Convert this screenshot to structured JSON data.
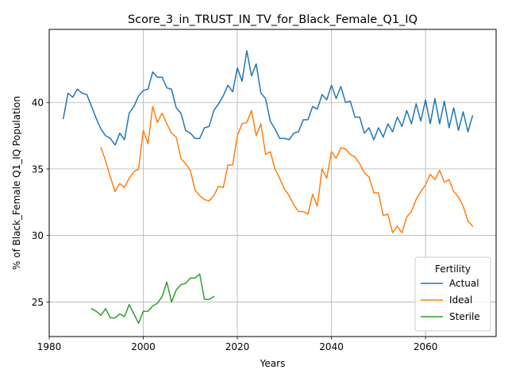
{
  "chart_data": {
    "type": "line",
    "title": "Score_3_in_TRUST_IN_TV_for_Black_Female_Q1_IQ",
    "xlabel": "Years",
    "ylabel": "% of Black_Female Q1_IQ Population",
    "xlim": [
      1980,
      2075
    ],
    "ylim": [
      22.4,
      45.5
    ],
    "xticks": [
      1980,
      2000,
      2020,
      2040,
      2060
    ],
    "yticks": [
      25,
      30,
      35,
      40
    ],
    "grid": true,
    "legend": {
      "title": "Fertility",
      "position": "lower-right"
    },
    "series": [
      {
        "name": "Actual",
        "color": "#1f77b4",
        "x": [
          1983,
          1984,
          1985,
          1986,
          1987,
          1988,
          1989,
          1990,
          1991,
          1992,
          1993,
          1994,
          1995,
          1996,
          1997,
          1998,
          1999,
          2000,
          2001,
          2002,
          2003,
          2004,
          2005,
          2006,
          2007,
          2008,
          2009,
          2010,
          2011,
          2012,
          2013,
          2014,
          2015,
          2016,
          2017,
          2018,
          2019,
          2020,
          2021,
          2022,
          2023,
          2024,
          2025,
          2026,
          2027,
          2028,
          2029,
          2030,
          2031,
          2032,
          2033,
          2034,
          2035,
          2036,
          2037,
          2038,
          2039,
          2040,
          2041,
          2042,
          2043,
          2044,
          2045,
          2046,
          2047,
          2048,
          2049,
          2050,
          2051,
          2052,
          2053,
          2054,
          2055,
          2056,
          2057,
          2058,
          2059,
          2060,
          2061,
          2062,
          2063,
          2064,
          2065,
          2066,
          2067,
          2068,
          2069,
          2070
        ],
        "values": [
          38.8,
          40.7,
          40.4,
          41.0,
          40.7,
          40.6,
          39.7,
          38.8,
          38.0,
          37.5,
          37.3,
          36.8,
          37.7,
          37.2,
          39.2,
          39.7,
          40.5,
          40.9,
          41.0,
          42.3,
          41.9,
          41.9,
          41.1,
          41.0,
          39.6,
          39.2,
          37.9,
          37.7,
          37.3,
          37.3,
          38.1,
          38.2,
          39.4,
          39.9,
          40.5,
          41.3,
          40.8,
          42.6,
          41.6,
          43.9,
          42.0,
          42.9,
          40.7,
          40.3,
          38.6,
          38.0,
          37.3,
          37.3,
          37.2,
          37.7,
          37.8,
          38.7,
          38.7,
          39.7,
          39.5,
          40.6,
          40.2,
          41.3,
          40.3,
          41.2,
          40.0,
          40.1,
          38.9,
          38.9,
          37.7,
          38.1,
          37.2,
          38.1,
          37.4,
          38.4,
          37.8,
          38.9,
          38.2,
          39.4,
          38.4,
          39.9,
          38.6,
          40.2,
          38.4,
          40.3,
          38.4,
          40.1,
          38.1,
          39.6,
          37.9,
          39.3,
          37.8,
          39.0
        ]
      },
      {
        "name": "Ideal",
        "color": "#ff7f0e",
        "x": [
          1991,
          1992,
          1993,
          1994,
          1995,
          1996,
          1997,
          1998,
          1999,
          2000,
          2001,
          2002,
          2003,
          2004,
          2005,
          2006,
          2007,
          2008,
          2009,
          2010,
          2011,
          2012,
          2013,
          2014,
          2015,
          2016,
          2017,
          2018,
          2019,
          2020,
          2021,
          2022,
          2023,
          2024,
          2025,
          2026,
          2027,
          2028,
          2029,
          2030,
          2031,
          2032,
          2033,
          2034,
          2035,
          2036,
          2037,
          2038,
          2039,
          2040,
          2041,
          2042,
          2043,
          2044,
          2045,
          2046,
          2047,
          2048,
          2049,
          2050,
          2051,
          2052,
          2053,
          2054,
          2055,
          2056,
          2057,
          2058,
          2059,
          2060,
          2061,
          2062,
          2063,
          2064,
          2065,
          2066,
          2067,
          2068,
          2069,
          2070
        ],
        "values": [
          36.6,
          35.6,
          34.4,
          33.3,
          33.9,
          33.6,
          34.3,
          34.8,
          35.0,
          37.9,
          36.9,
          39.7,
          38.5,
          39.2,
          38.4,
          37.7,
          37.4,
          35.8,
          35.4,
          34.9,
          33.4,
          33.0,
          32.7,
          32.6,
          33.0,
          33.7,
          33.6,
          35.3,
          35.3,
          37.5,
          38.4,
          38.5,
          39.4,
          37.5,
          38.4,
          36.1,
          36.3,
          35.0,
          34.3,
          33.5,
          33.0,
          32.3,
          31.8,
          31.8,
          31.6,
          33.1,
          32.2,
          35.0,
          34.3,
          36.3,
          35.8,
          36.6,
          36.5,
          36.1,
          35.9,
          35.4,
          34.7,
          34.4,
          33.2,
          33.2,
          31.5,
          31.6,
          30.2,
          30.7,
          30.2,
          31.4,
          31.8,
          32.7,
          33.3,
          33.8,
          34.6,
          34.2,
          34.9,
          34.0,
          34.2,
          33.3,
          32.9,
          32.2,
          31.1,
          30.7
        ]
      },
      {
        "name": "Sterile",
        "color": "#2ca02c",
        "x": [
          1989,
          1990,
          1991,
          1992,
          1993,
          1994,
          1995,
          1996,
          1997,
          1998,
          1999,
          2000,
          2001,
          2002,
          2003,
          2004,
          2005,
          2006,
          2007,
          2008,
          2009,
          2010,
          2011,
          2012,
          2013,
          2014,
          2015
        ],
        "values": [
          24.5,
          24.3,
          24.0,
          24.5,
          23.8,
          23.8,
          24.1,
          23.9,
          24.8,
          24.1,
          23.4,
          24.3,
          24.3,
          24.7,
          24.9,
          25.4,
          26.5,
          25.0,
          25.9,
          26.3,
          26.4,
          26.8,
          26.8,
          27.1,
          25.2,
          25.2,
          25.4
        ]
      }
    ]
  }
}
